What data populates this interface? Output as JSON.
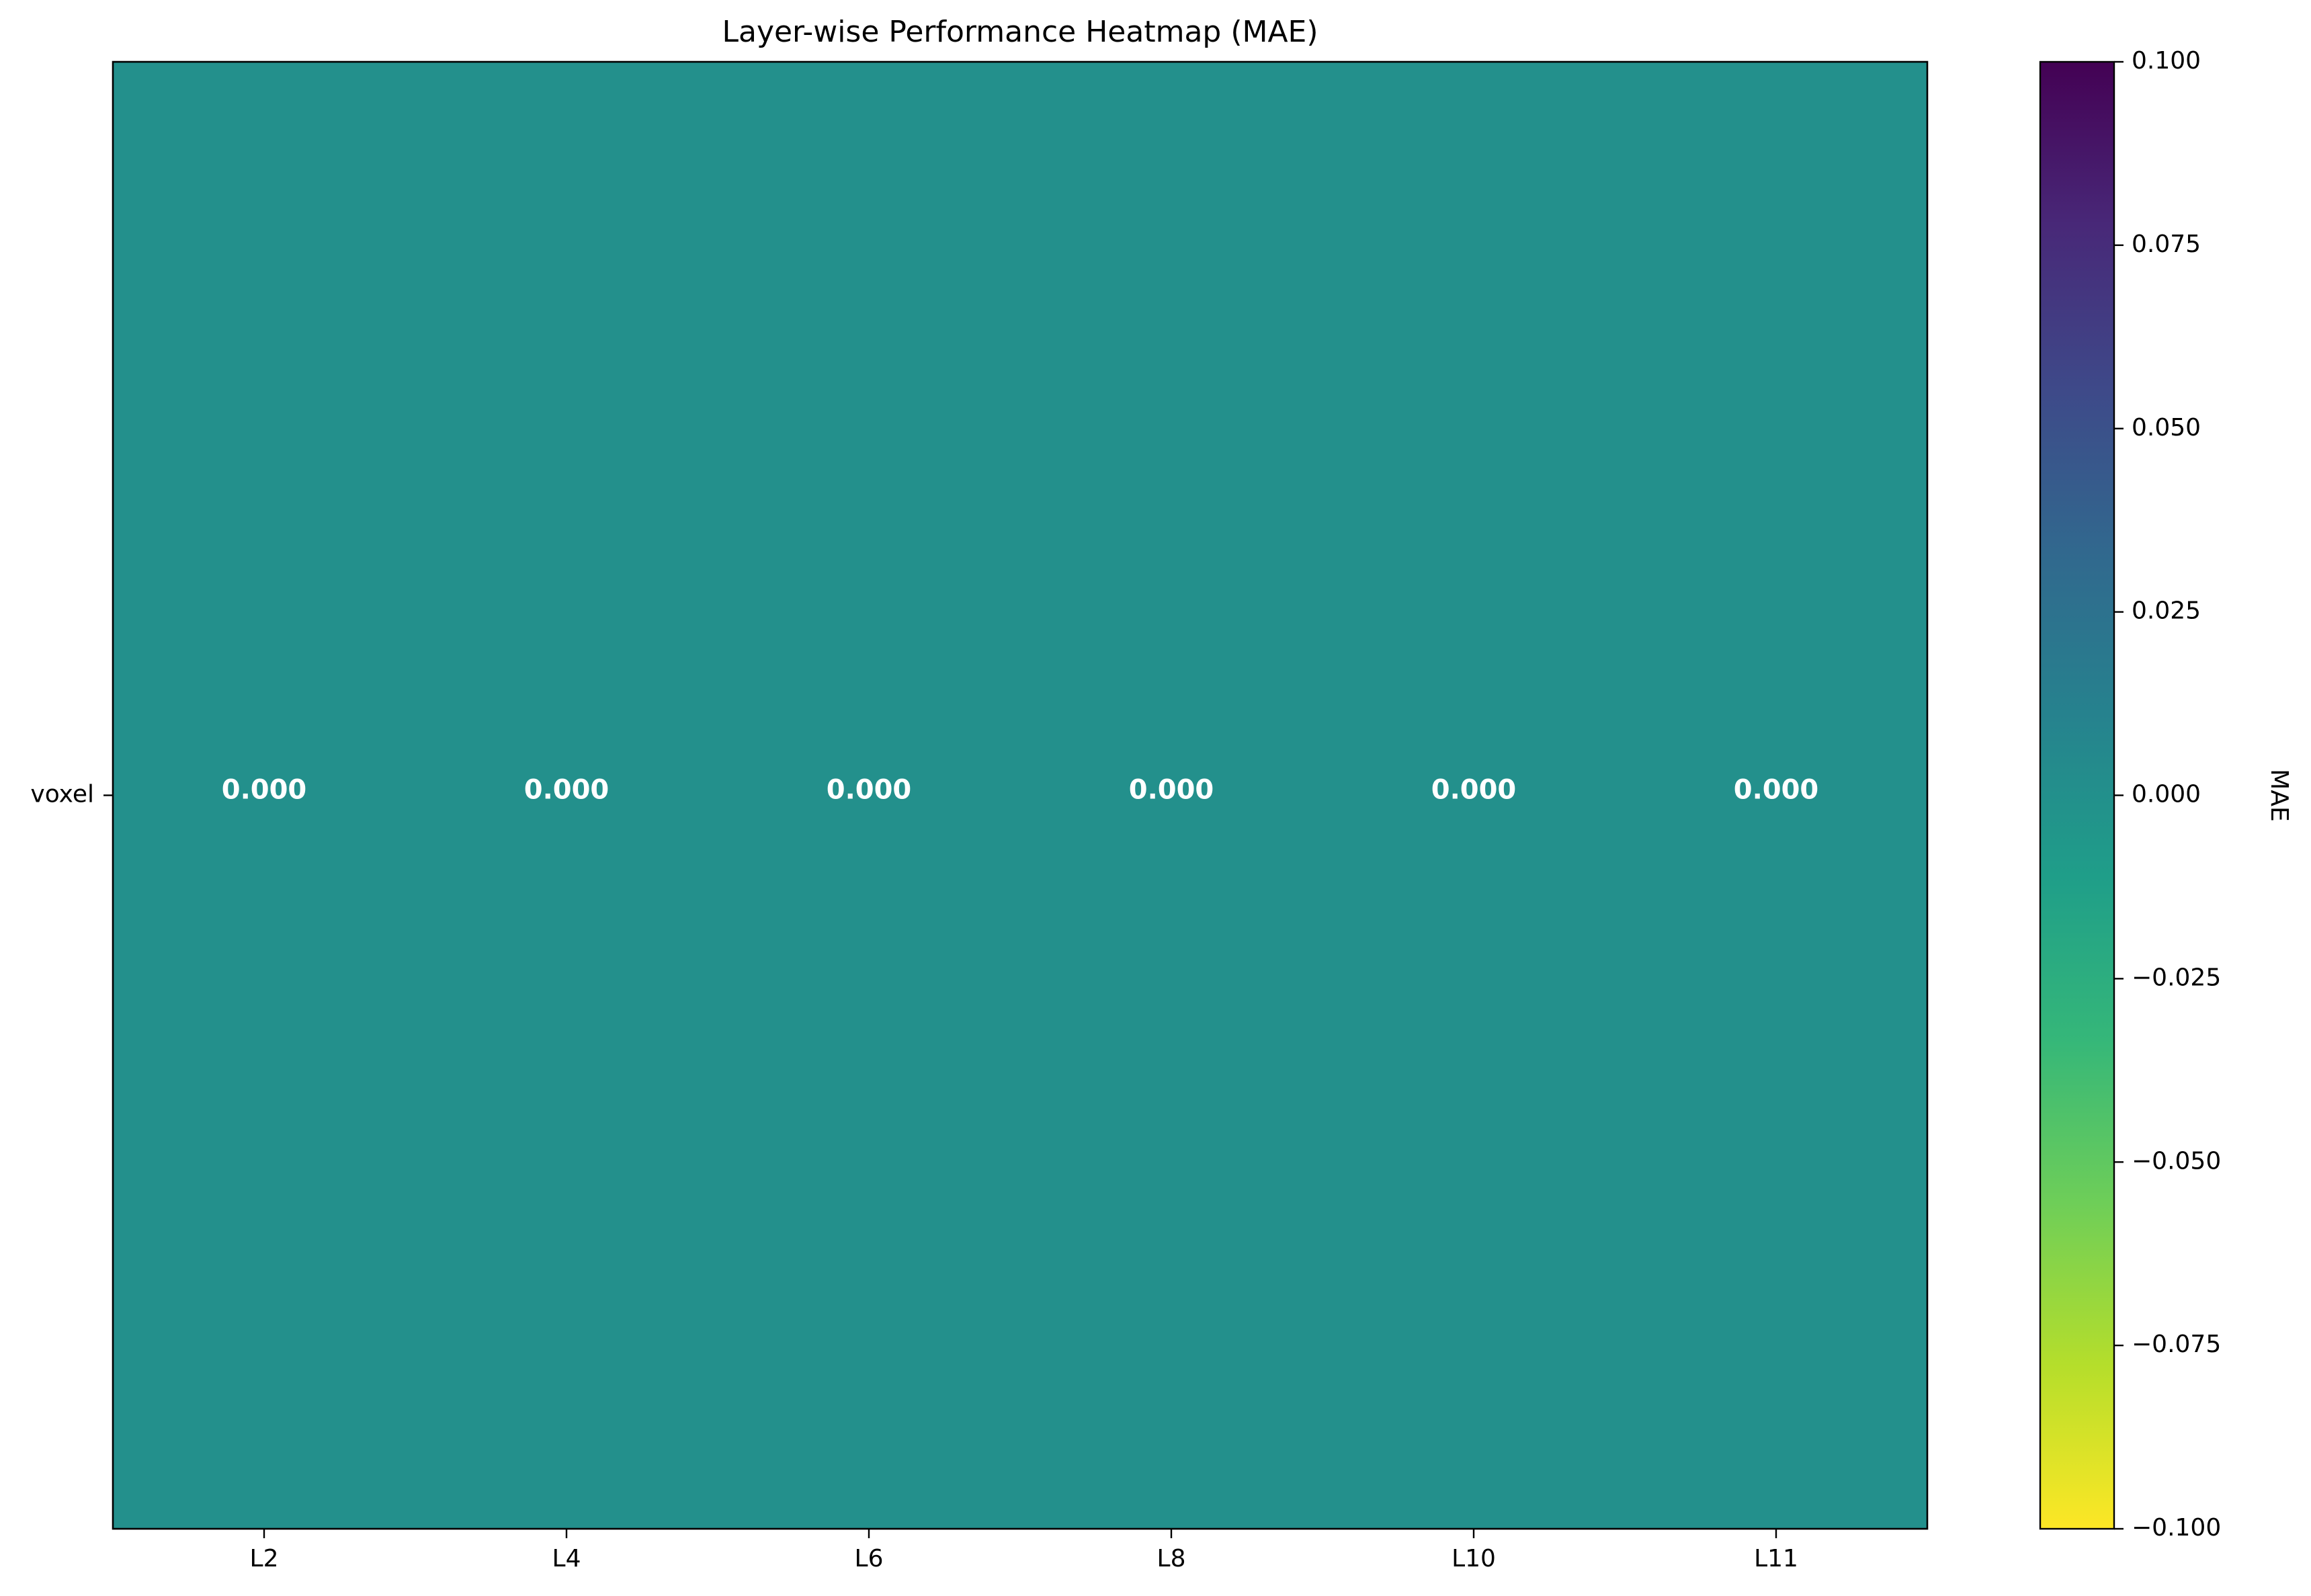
{
  "chart_data": {
    "type": "heatmap",
    "title": "Layer-wise Performance Heatmap (MAE)",
    "x_categories": [
      "L2",
      "L4",
      "L6",
      "L8",
      "L10",
      "L11"
    ],
    "y_categories": [
      "voxel"
    ],
    "values": [
      [
        0.0,
        0.0,
        0.0,
        0.0,
        0.0,
        0.0
      ]
    ],
    "cell_labels": [
      [
        "0.000",
        "0.000",
        "0.000",
        "0.000",
        "0.000",
        "0.000"
      ]
    ],
    "colormap": "viridis (reversed)",
    "colorbar": {
      "label": "MAE",
      "range": [
        -0.1,
        0.1
      ],
      "tick_values": [
        -0.1,
        -0.075,
        -0.05,
        -0.025,
        0.0,
        0.025,
        0.05,
        0.075,
        0.1
      ],
      "tick_labels": [
        "−0.100",
        "−0.075",
        "−0.050",
        "−0.025",
        "0.000",
        "0.025",
        "0.050",
        "0.075",
        "0.100"
      ]
    },
    "grid": false,
    "cell_text_color": "#ffffff"
  },
  "colors": {
    "viridis_stops": [
      "#fde725",
      "#b5de2b",
      "#6ece58",
      "#35b779",
      "#1f9e89",
      "#26828e",
      "#31688e",
      "#3e4989",
      "#482878",
      "#440154"
    ],
    "cell_mid": "#21918c",
    "axes": "#000000"
  }
}
